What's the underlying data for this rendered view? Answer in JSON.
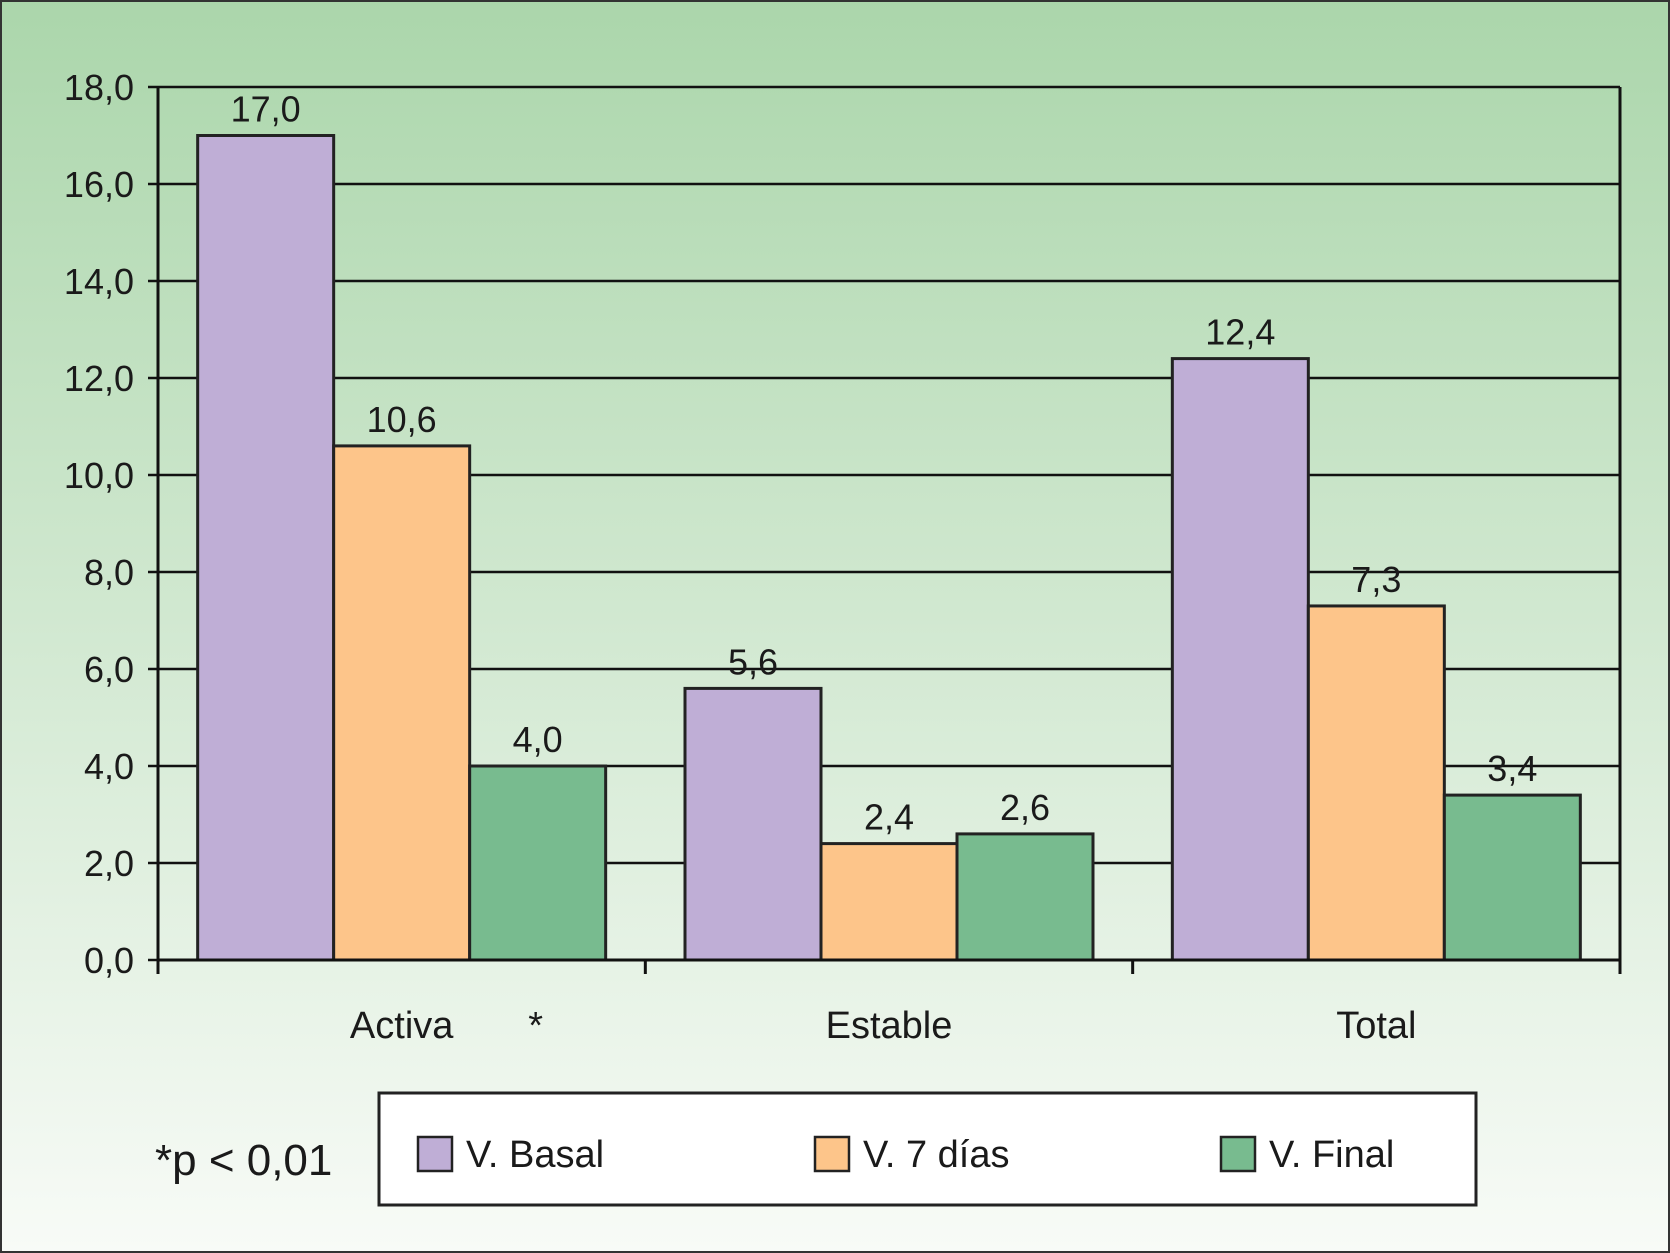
{
  "chart_data": {
    "type": "bar",
    "categories": [
      "Activa",
      "Estable",
      "Total"
    ],
    "category_markers": [
      "*",
      "",
      ""
    ],
    "series": [
      {
        "name": "V. Basal",
        "values": [
          17.0,
          5.6,
          12.4
        ],
        "labels": [
          "17,0",
          "5,6",
          "12,4"
        ],
        "color": "#bfaed6"
      },
      {
        "name": "V. 7 días",
        "values": [
          10.6,
          2.4,
          7.3
        ],
        "labels": [
          "10,6",
          "2,4",
          "7,3"
        ],
        "color": "#fdc58a"
      },
      {
        "name": "V. Final",
        "values": [
          4.0,
          2.6,
          3.4
        ],
        "labels": [
          "4,0",
          "2,6",
          "3,4"
        ],
        "color": "#78bb8f"
      }
    ],
    "ylim": [
      0,
      18
    ],
    "yticks": [
      0,
      2,
      4,
      6,
      8,
      10,
      12,
      14,
      16,
      18
    ],
    "ytick_labels": [
      "0,0",
      "2,0",
      "4,0",
      "6,0",
      "8,0",
      "10,0",
      "12,0",
      "14,0",
      "16,0",
      "18,0"
    ],
    "grid": true,
    "legend_position": "bottom",
    "title": "",
    "xlabel": "",
    "ylabel": "",
    "note": "*p < 0,01",
    "background_colors": [
      "#abd6ab",
      "#f8fbf7"
    ]
  }
}
